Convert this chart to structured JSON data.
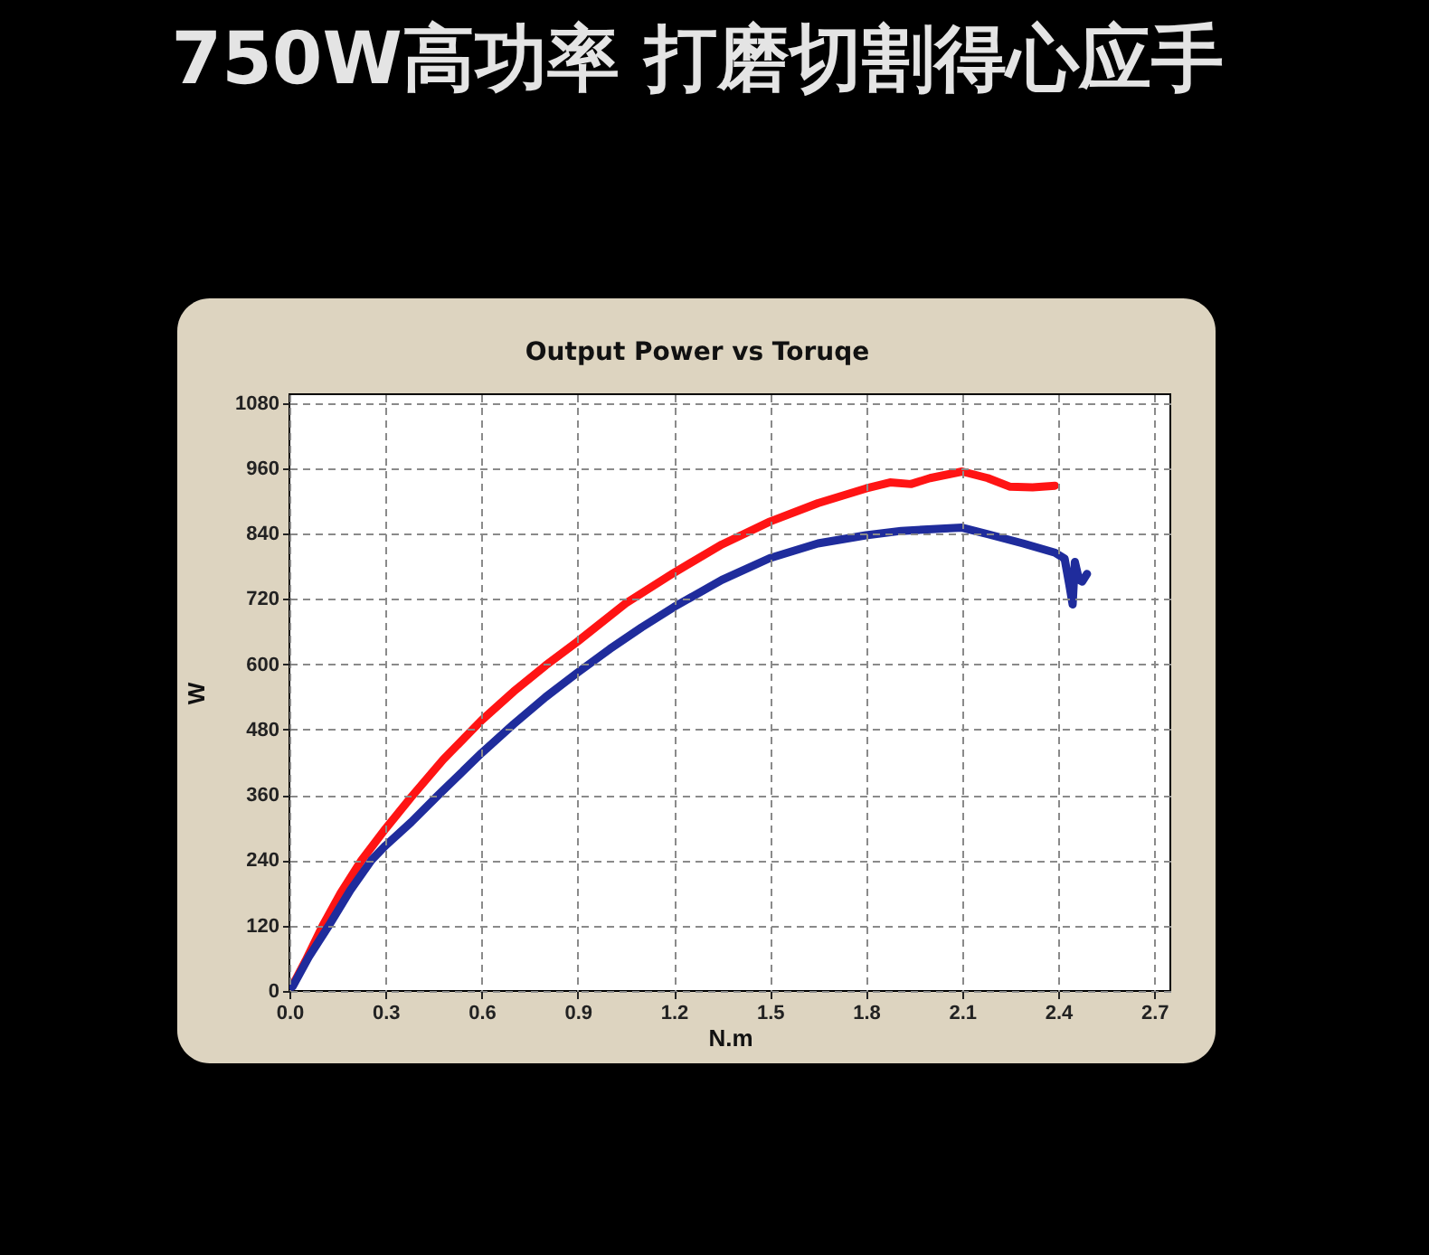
{
  "chart_data": {
    "type": "line",
    "title": "750W高功率 打磨切割得心应手",
    "subtitle": "Output Power vs Toruqe",
    "xlabel": "N.m",
    "ylabel": "W",
    "xlim": [
      0,
      2.75
    ],
    "ylim": [
      0,
      1096
    ],
    "xticks": [
      {
        "value": 0,
        "label": "0.0"
      },
      0.3,
      0.6,
      0.9,
      1.2,
      1.5,
      1.8,
      2.1,
      2.4,
      2.7
    ],
    "yticks": [
      0,
      120,
      240,
      360,
      480,
      600,
      720,
      840,
      960,
      1080
    ],
    "grid": true,
    "series": [
      {
        "color": "#ff1414",
        "x": [
          0.01,
          0.05,
          0.104,
          0.16,
          0.225,
          0.3,
          0.38,
          0.48,
          0.6,
          0.7,
          0.8,
          0.9,
          1.05,
          1.2,
          1.35,
          1.5,
          1.65,
          1.8,
          1.875,
          1.94,
          2.0,
          2.1,
          2.18,
          2.25,
          2.32,
          2.39
        ],
        "values": [
          10,
          55,
          120,
          180,
          240,
          298,
          356,
          425,
          497,
          550,
          598,
          642,
          712,
          768,
          820,
          862,
          896,
          923,
          934,
          931,
          942,
          954,
          942,
          926,
          925,
          928
        ]
      },
      {
        "color": "#1f2c9c",
        "x": [
          0.01,
          0.06,
          0.123,
          0.19,
          0.256,
          0.3,
          0.38,
          0.465,
          0.6,
          0.7,
          0.8,
          0.9,
          1.0,
          1.1,
          1.2,
          1.35,
          1.5,
          1.65,
          1.8,
          1.91,
          2.1,
          2.18,
          2.29,
          2.39,
          2.42,
          2.435,
          2.445,
          2.452,
          2.465,
          2.475,
          2.49
        ],
        "values": [
          8,
          62,
          120,
          185,
          240,
          267,
          310,
          360,
          437,
          490,
          540,
          585,
          628,
          668,
          705,
          755,
          795,
          822,
          837,
          845,
          851,
          839,
          822,
          805,
          794,
          745,
          710,
          788,
          755,
          752,
          766
        ]
      }
    ]
  }
}
